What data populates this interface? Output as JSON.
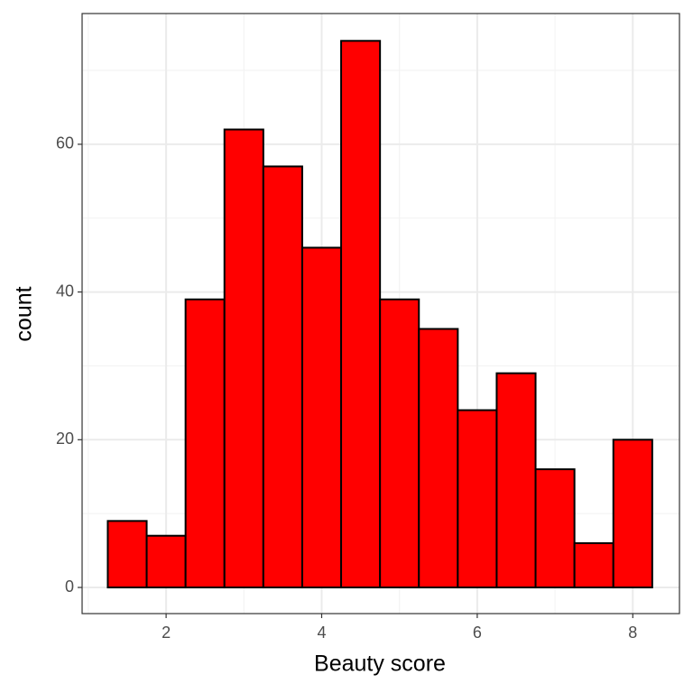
{
  "chart_data": {
    "type": "histogram",
    "x_label": "Beauty score",
    "y_label": "count",
    "bins": [
      1.25,
      1.75,
      2.25,
      2.75,
      3.25,
      3.75,
      4.25,
      4.75,
      5.25,
      5.75,
      6.25,
      6.75,
      7.25,
      7.75,
      8.25
    ],
    "values": [
      9,
      7,
      39,
      62,
      57,
      46,
      74,
      39,
      35,
      24,
      29,
      16,
      6,
      20
    ],
    "color": "#ff0000",
    "edge_color": "#000000",
    "xlim": [
      0.92,
      8.6
    ],
    "xticks": [
      2,
      4,
      6,
      8
    ],
    "ylim": [
      -3.54,
      77.7
    ],
    "yticks": [
      0,
      20,
      40,
      60
    ],
    "grid": true,
    "minor_grid": true
  }
}
